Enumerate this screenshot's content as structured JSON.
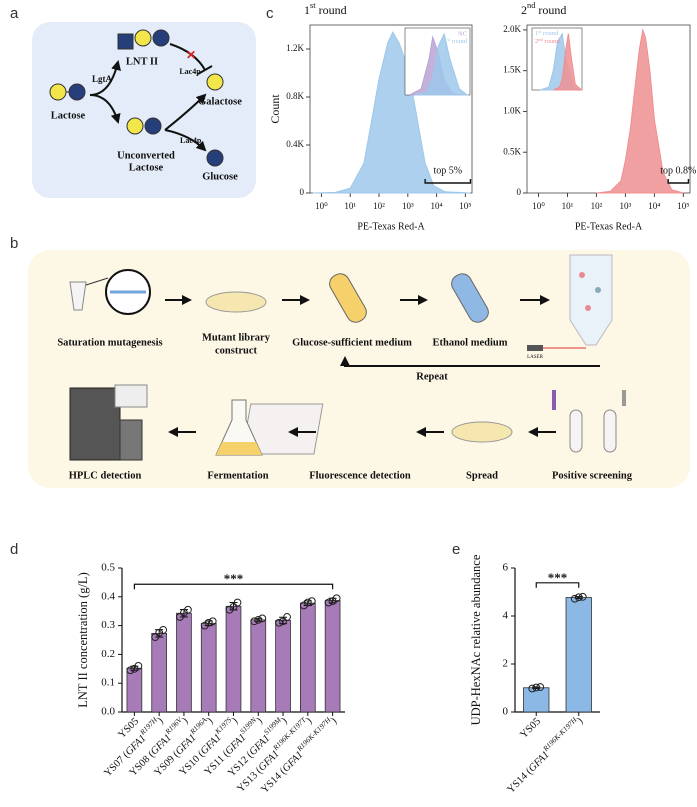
{
  "panel_labels": [
    "a",
    "b",
    "c",
    "d",
    "e"
  ],
  "diagram_a": {
    "substrate": "Lactose",
    "enzyme1": "LgtA",
    "product": "LNT II",
    "enzyme2_top": "Lac4p",
    "byproduct_top": "Galactose",
    "unconverted": [
      "Unconverted",
      "Lactose"
    ],
    "enzyme2_bottom": "Lac4p",
    "byproduct_bottom": "Glucose"
  },
  "diagram_b": {
    "steps": [
      [
        "Saturation mutagenesis"
      ],
      [
        "Mutant library",
        "construct"
      ],
      [
        "Glucose-sufficient medium"
      ],
      [
        "Ethanol medium"
      ],
      [
        "Positive screening"
      ],
      [
        "Spread"
      ],
      [
        "Fluorescence detection"
      ],
      [
        "Fermentation"
      ],
      [
        "HPLC detection"
      ]
    ],
    "repeat": "Repeat",
    "laser": "LASER"
  },
  "chart_data": [
    {
      "type": "area",
      "title": "1st round",
      "xlabel": "PE-Texas Red-A",
      "ylabel": "Count",
      "xscale": "log",
      "xlim": [
        0.4,
        170000
      ],
      "xticks": [
        {
          "value": 1,
          "label": "10⁰"
        },
        {
          "value": 10,
          "label": "10¹"
        },
        {
          "value": 100,
          "label": "10²"
        },
        {
          "value": 1000,
          "label": "10³"
        },
        {
          "value": 10000,
          "label": "10⁴"
        },
        {
          "value": 100000,
          "label": "10⁵"
        }
      ],
      "ylim": [
        0,
        1400
      ],
      "yticks": [
        0,
        {
          "value": 400,
          "label": "0.4K"
        },
        {
          "value": 800,
          "label": "0.8K"
        },
        {
          "value": 1200,
          "label": "1.2K"
        }
      ],
      "series": [
        {
          "color": "#9ec8ea",
          "x": [
            0.5,
            3,
            10,
            30,
            60,
            100,
            200,
            300,
            500,
            1000,
            2000,
            4000,
            8000,
            20000,
            150000
          ],
          "values": [
            0,
            5,
            40,
            250,
            650,
            950,
            1250,
            1340,
            1250,
            1050,
            650,
            250,
            60,
            10,
            0
          ]
        }
      ],
      "annotation": {
        "text": "top 5%",
        "x": [
          4000,
          150000
        ]
      }
    },
    {
      "type": "area",
      "xscale": "log",
      "xlim": [
        0.4,
        170000
      ],
      "ylim": [
        0,
        1.1
      ],
      "legend": "upper right",
      "series": [
        {
          "name": "NC",
          "color": "#b9a3d6",
          "x": [
            1,
            10,
            50,
            100,
            300,
            1000,
            5000,
            30000
          ],
          "values": [
            0,
            0.1,
            0.6,
            0.95,
            0.7,
            0.25,
            0.03,
            0
          ]
        },
        {
          "name": "1st round",
          "color": "#9ec8ea",
          "x": [
            3,
            30,
            100,
            300,
            1000,
            3000,
            20000,
            100000
          ],
          "values": [
            0,
            0.05,
            0.3,
            0.8,
            1,
            0.6,
            0.1,
            0
          ]
        }
      ]
    },
    {
      "type": "area",
      "title": "2nd round",
      "xlabel": "PE-Texas Red-A",
      "xscale": "log",
      "xlim": [
        0.4,
        170000
      ],
      "xticks": [
        {
          "value": 1,
          "label": "10⁰"
        },
        {
          "value": 10,
          "label": "10¹"
        },
        {
          "value": 100,
          "label": "10²"
        },
        {
          "value": 1000,
          "label": "10³"
        },
        {
          "value": 10000,
          "label": "10⁴"
        },
        {
          "value": 100000,
          "label": "10⁵"
        }
      ],
      "ylim": [
        0,
        2060
      ],
      "yticks": [
        0,
        {
          "value": 500,
          "label": "0.5K"
        },
        {
          "value": 1000,
          "label": "1.0K"
        },
        {
          "value": 1500,
          "label": "1.5K"
        },
        {
          "value": 2000,
          "label": "2.0K"
        }
      ],
      "series": [
        {
          "color": "#ef8f92",
          "x": [
            100,
            300,
            700,
            1000,
            1500,
            2000,
            3000,
            4000,
            5000,
            7000,
            10000,
            20000,
            40000,
            100000
          ],
          "values": [
            0,
            20,
            150,
            400,
            800,
            1200,
            1750,
            2000,
            1900,
            1500,
            900,
            250,
            40,
            0
          ]
        }
      ],
      "annotation": {
        "text": "top 0.8%",
        "x": [
          30000,
          150000
        ]
      }
    },
    {
      "type": "area",
      "xscale": "log",
      "xlim": [
        0.4,
        170000
      ],
      "ylim": [
        0,
        1.1
      ],
      "legend": "upper left",
      "series": [
        {
          "name": "1st round",
          "color": "#9ec8ea",
          "x": [
            3,
            30,
            100,
            300,
            1000,
            3000,
            20000,
            100000
          ],
          "values": [
            0,
            0.05,
            0.35,
            0.85,
            1,
            0.5,
            0.05,
            0
          ]
        },
        {
          "name": "2nd round",
          "color": "#ef8f92",
          "x": [
            100,
            500,
            1000,
            3000,
            5000,
            10000,
            30000,
            150000
          ],
          "values": [
            0,
            0.05,
            0.2,
            0.8,
            1,
            0.6,
            0.1,
            0
          ]
        }
      ]
    },
    {
      "type": "bar",
      "ylabel": "LNT II concentration (g/L)",
      "color": "#a77ab8",
      "categories": [
        "YS05",
        "YS07 (GFA1R197H)",
        "YS08 (GFA1R196V)",
        "YS09 (GFA1R196A)",
        "YS10 (GFA1K197S)",
        "YS11 (GFA1S199N)",
        "YS12 (GFA1S199M)",
        "YS13 (GFA1R196K-K197T)",
        "YS14 (GFA1R196K-K197H)"
      ],
      "values": [
        0.152,
        0.273,
        0.343,
        0.308,
        0.367,
        0.32,
        0.318,
        0.378,
        0.387
      ],
      "errors": [
        0.007,
        0.013,
        0.013,
        0.008,
        0.013,
        0.005,
        0.011,
        0.008,
        0.008
      ],
      "replicates": [
        [
          0.145,
          0.15,
          0.16
        ],
        [
          0.26,
          0.275,
          0.285
        ],
        [
          0.33,
          0.345,
          0.355
        ],
        [
          0.3,
          0.31,
          0.315
        ],
        [
          0.355,
          0.365,
          0.38
        ],
        [
          0.315,
          0.32,
          0.325
        ],
        [
          0.31,
          0.315,
          0.33
        ],
        [
          0.37,
          0.38,
          0.385
        ],
        [
          0.38,
          0.385,
          0.395
        ]
      ],
      "ylim": [
        0,
        0.5
      ],
      "yticks": [
        {
          "value": 0,
          "label": "0.0"
        },
        0.1,
        0.2,
        0.3,
        0.4,
        0.5
      ],
      "significance": "***"
    },
    {
      "type": "bar",
      "ylabel": "UDP-HexNAc relative abundance",
      "color": "#8cb8e6",
      "categories": [
        "YS05",
        "YS14 (GFA1R196K-K197H)"
      ],
      "values": [
        1.01,
        4.77
      ],
      "errors": [
        0.03,
        0.04
      ],
      "replicates": [
        [
          0.98,
          1.02,
          1.04
        ],
        [
          4.72,
          4.78,
          4.8
        ]
      ],
      "ylim": [
        0,
        6
      ],
      "yticks": [
        0,
        2,
        4,
        6
      ],
      "significance": "***"
    }
  ]
}
